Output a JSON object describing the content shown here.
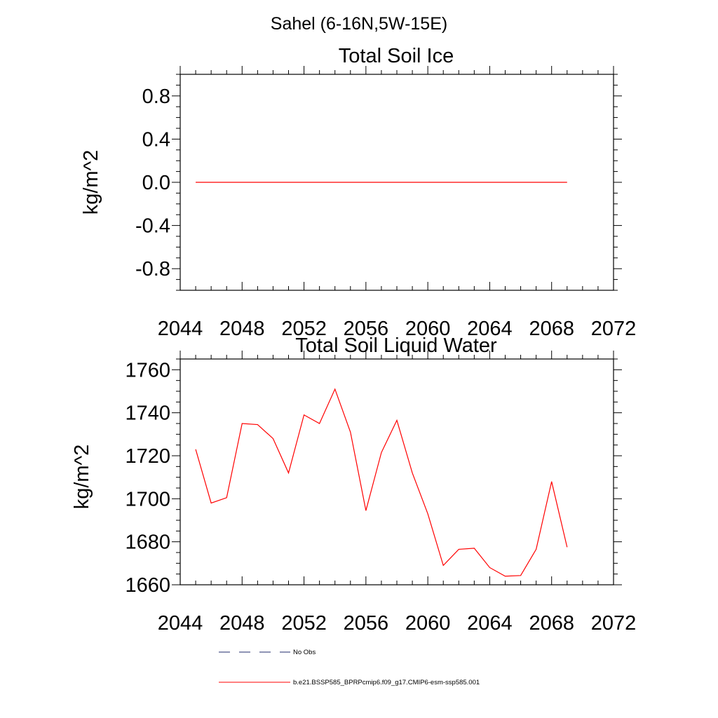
{
  "figure": {
    "suptitle": "Sahel (6-16N,5W-15E)"
  },
  "chart_data": [
    {
      "type": "line",
      "title": "Total Soil Ice",
      "xlabel": "",
      "ylabel": "kg/m^2",
      "xlim": [
        2044,
        2072
      ],
      "ylim": [
        -1.0,
        1.0
      ],
      "xticks": [
        2044,
        2048,
        2052,
        2056,
        2060,
        2064,
        2068,
        2072
      ],
      "xtick_labels": [
        "2044",
        "2048",
        "2052",
        "2056",
        "2060",
        "2064",
        "2068",
        "2072"
      ],
      "yticks": [
        0.8,
        0.4,
        0.0,
        -0.4,
        -0.8
      ],
      "ytick_labels": [
        "0.8",
        "0.4",
        "0.0",
        "-0.4",
        "-0.8"
      ],
      "x_minor_step": 1,
      "y_minor_step": 0.1,
      "grid": false,
      "series": [
        {
          "color": "#ff0000",
          "x": [
            2045,
            2046,
            2047,
            2048,
            2049,
            2050,
            2051,
            2052,
            2053,
            2054,
            2055,
            2056,
            2057,
            2058,
            2059,
            2060,
            2061,
            2062,
            2063,
            2064,
            2065,
            2066,
            2067,
            2068,
            2069
          ],
          "values": [
            0,
            0,
            0,
            0,
            0,
            0,
            0,
            0,
            0,
            0,
            0,
            0,
            0,
            0,
            0,
            0,
            0,
            0,
            0,
            0,
            0,
            0,
            0,
            0,
            0
          ]
        }
      ]
    },
    {
      "type": "line",
      "title": "Total Soil Liquid Water",
      "xlabel": "",
      "ylabel": "kg/m^2",
      "xlim": [
        2044,
        2072
      ],
      "ylim": [
        1660,
        1765
      ],
      "xticks": [
        2044,
        2048,
        2052,
        2056,
        2060,
        2064,
        2068,
        2072
      ],
      "xtick_labels": [
        "2044",
        "2048",
        "2052",
        "2056",
        "2060",
        "2064",
        "2068",
        "2072"
      ],
      "yticks": [
        1760,
        1740,
        1720,
        1700,
        1680,
        1660
      ],
      "ytick_labels": [
        "1760",
        "1740",
        "1720",
        "1700",
        "1680",
        "1660"
      ],
      "x_minor_step": 1,
      "y_minor_step": 5,
      "grid": false,
      "series": [
        {
          "color": "#ff0000",
          "x": [
            2045,
            2046,
            2047,
            2048,
            2049,
            2050,
            2051,
            2052,
            2053,
            2054,
            2055,
            2056,
            2057,
            2058,
            2059,
            2060,
            2061,
            2062,
            2063,
            2064,
            2065,
            2066,
            2067,
            2068,
            2069
          ],
          "values": [
            1723,
            1698,
            1700.5,
            1735,
            1734.5,
            1728,
            1712,
            1739,
            1735,
            1751,
            1731,
            1694.5,
            1721.5,
            1736.5,
            1712,
            1693,
            1669,
            1676.5,
            1677,
            1668,
            1664,
            1664.3,
            1676.5,
            1708,
            1677.5
          ]
        }
      ]
    }
  ],
  "legend": {
    "items": [
      {
        "label": "No Obs",
        "color": "#1f2a6b",
        "dash": "dashed"
      },
      {
        "label": "b.e21.BSSP585_BPRPcmip6.f09_g17.CMIP6-esm-ssp585.001",
        "color": "#ff0000",
        "dash": "solid"
      }
    ]
  }
}
